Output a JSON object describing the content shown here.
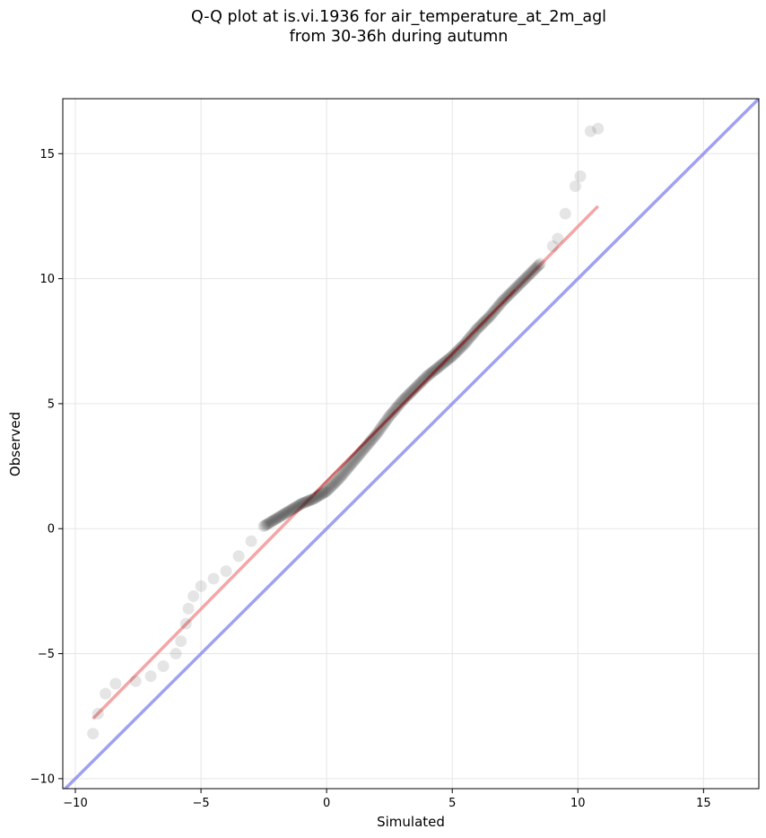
{
  "chart_data": {
    "type": "scatter",
    "title": "Q-Q plot at is.vi.1936 for air_temperature_at_2m_agl",
    "subtitle": "from 30-36h during autumn",
    "xlabel": "Simulated",
    "ylabel": "Observed",
    "xlim": [
      -10.5,
      17.2
    ],
    "ylim": [
      -10.4,
      17.2
    ],
    "xticks": [
      -10,
      -5,
      0,
      5,
      10,
      15
    ],
    "yticks": [
      -10,
      -5,
      0,
      5,
      10,
      15
    ],
    "xtick_labels": [
      "−10",
      "−5",
      "0",
      "5",
      "10",
      "15"
    ],
    "ytick_labels": [
      "−10",
      "−5",
      "0",
      "5",
      "10",
      "15"
    ],
    "grid": true,
    "colors": {
      "points": "#000000",
      "fit_line": "#f08080",
      "identity_line": "#8080f0",
      "dense_fit": "#8b0000"
    },
    "fit_line": {
      "x": [
        -9.3,
        10.8
      ],
      "y": [
        -7.6,
        12.9
      ]
    },
    "identity_line": {
      "x": [
        -10.5,
        17.2
      ],
      "y": [
        -10.5,
        17.2
      ]
    },
    "quantile_curve": {
      "x": [
        -9.3,
        -9.1,
        -8.8,
        -8.4,
        -7.6,
        -7.0,
        -6.5,
        -6.0,
        -5.8,
        -5.6,
        -5.5,
        -5.3,
        -5.0,
        -4.5,
        -4.0,
        -3.5,
        -3.0,
        -2.5,
        -2.0,
        -1.5,
        -1.0,
        -0.5,
        0.0,
        0.5,
        1.0,
        1.5,
        2.0,
        2.5,
        3.0,
        3.5,
        4.0,
        4.5,
        5.0,
        5.5,
        6.0,
        6.5,
        7.0,
        7.5,
        8.0,
        8.5,
        9.0,
        9.2,
        9.5,
        9.9,
        10.1,
        10.5,
        10.8
      ],
      "y": [
        -8.2,
        -7.4,
        -6.6,
        -6.2,
        -6.1,
        -5.9,
        -5.5,
        -5.0,
        -4.5,
        -3.8,
        -3.2,
        -2.7,
        -2.3,
        -2.0,
        -1.7,
        -1.1,
        -0.5,
        0.1,
        0.4,
        0.7,
        1.0,
        1.2,
        1.5,
        2.0,
        2.6,
        3.2,
        3.8,
        4.5,
        5.1,
        5.6,
        6.1,
        6.5,
        6.9,
        7.4,
        8.0,
        8.5,
        9.1,
        9.6,
        10.1,
        10.6,
        11.3,
        11.6,
        12.6,
        13.7,
        14.1,
        15.9,
        16.0
      ]
    }
  }
}
